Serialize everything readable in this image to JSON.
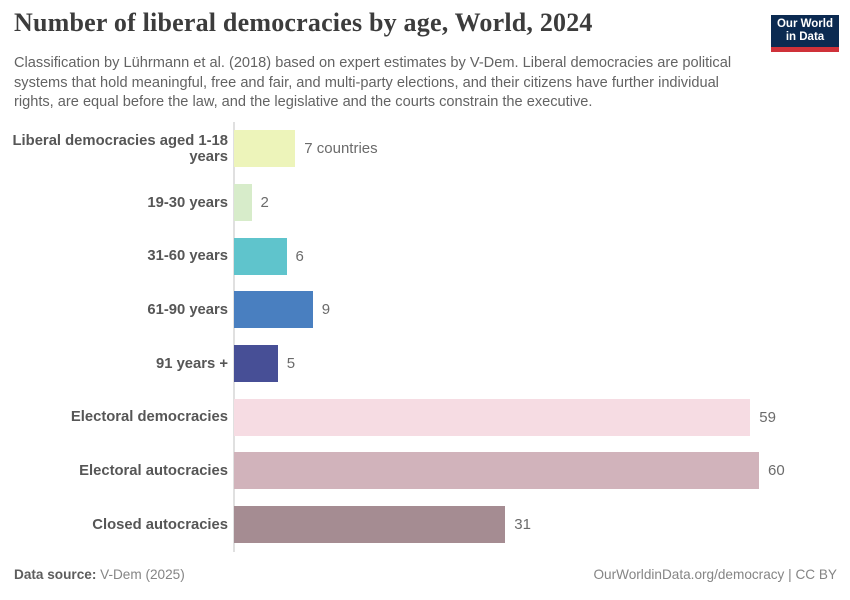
{
  "header": {
    "title": "Number of liberal democracies by age, World, 2024",
    "subtitle": "Classification by Lührmann et al. (2018) based on expert estimates by V-Dem. Liberal democracies are political systems that hold meaningful, free and fair, and multi-party elections, and their citizens have further individual rights, are equal before the law, and the legislative and the courts constrain the executive.",
    "logo": {
      "line1": "Our World",
      "line2": "in Data",
      "bg_color": "#0b2a51",
      "accent_color": "#cf3139"
    }
  },
  "chart_data": {
    "type": "bar",
    "orientation": "horizontal",
    "title": "Number of liberal democracies by age, World, 2024",
    "categories": [
      "Liberal democracies aged 1-18 years",
      "19-30 years",
      "31-60 years",
      "61-90 years",
      "91 years +",
      "Electoral democracies",
      "Electoral autocracies",
      "Closed autocracies"
    ],
    "values": [
      7,
      2,
      6,
      9,
      5,
      59,
      60,
      31
    ],
    "value_labels": [
      "7 countries",
      "2",
      "6",
      "9",
      "5",
      "59",
      "60",
      "31"
    ],
    "colors": [
      "#edf4ba",
      "#d7ecca",
      "#5fc4cc",
      "#497fc0",
      "#474f96",
      "#f6dce3",
      "#d1b3bb",
      "#a58c92"
    ],
    "xlim": [
      0,
      62
    ],
    "grid": false,
    "legend": "none",
    "axis_line_color": "#e0e0e0",
    "label_color": "#565656",
    "value_color": "#6b6b6b"
  },
  "footer": {
    "source_label": "Data source:",
    "source_value": "V-Dem (2025)",
    "url": "OurWorldinData.org/democracy",
    "license": " | CC BY"
  }
}
